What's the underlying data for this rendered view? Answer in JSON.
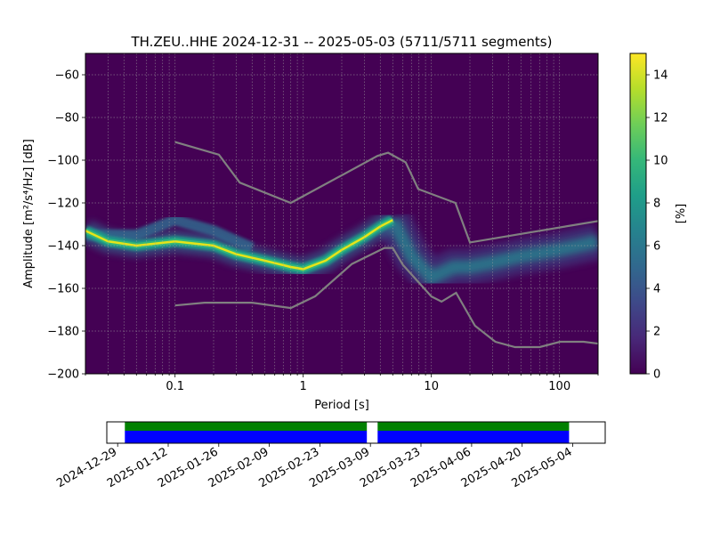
{
  "chart_data": {
    "type": "heatmap",
    "title": "TH.ZEU..HHE   2024-12-31 -- 2025-05-03  (5711/5711 segments)",
    "xlabel": "Period [s]",
    "ylabel": "Amplitude [m²/s⁴/Hz] [dB]",
    "x_scale": "log",
    "xlim": [
      0.02,
      200
    ],
    "ylim": [
      -200,
      -50
    ],
    "x_ticks": [
      {
        "value": 0.1,
        "label": "0.1"
      },
      {
        "value": 1,
        "label": "1"
      },
      {
        "value": 10,
        "label": "10"
      },
      {
        "value": 100,
        "label": "100"
      }
    ],
    "y_ticks": [
      -200,
      -180,
      -160,
      -140,
      -120,
      -100,
      -80,
      -60
    ],
    "grid": true,
    "colorbar": {
      "label": "[%]",
      "range": [
        0,
        15
      ],
      "ticks": [
        0,
        2,
        4,
        6,
        8,
        10,
        12,
        14
      ],
      "colormap": [
        "#440154",
        "#482878",
        "#3e4989",
        "#31688e",
        "#26828e",
        "#1f9e89",
        "#35b779",
        "#6ece58",
        "#b5de2b",
        "#fde725"
      ]
    },
    "mode_curve": {
      "x": [
        0.02,
        0.03,
        0.05,
        0.1,
        0.2,
        0.3,
        0.5,
        0.8,
        1,
        1.5,
        2,
        3,
        4,
        5
      ],
      "y": [
        -133,
        -138,
        -140,
        -138,
        -140,
        -144,
        -147,
        -150,
        -151,
        -147,
        -142,
        -136,
        -131,
        -128
      ]
    },
    "secondary_ridge": {
      "x": [
        0.02,
        0.05,
        0.1,
        0.2,
        0.4
      ],
      "y": [
        -135,
        -135,
        -128,
        -133,
        -141
      ]
    },
    "broad_band": {
      "x": [
        5,
        7,
        10,
        15,
        20,
        30,
        50,
        100,
        200
      ],
      "y": [
        -128,
        -145,
        -155,
        -150,
        -150,
        -148,
        -145,
        -142,
        -138
      ]
    },
    "high_noise_model": {
      "x": [
        0.1,
        0.22,
        0.32,
        0.8,
        3.8,
        4.6,
        6.3,
        7.9,
        15.4,
        20,
        354.8
      ],
      "y": [
        -91.5,
        -97.4,
        -110.5,
        -120,
        -98,
        -96.5,
        -101,
        -113.5,
        -120,
        -138.5,
        -126
      ]
    },
    "low_noise_model": {
      "x": [
        0.1,
        0.17,
        0.4,
        0.8,
        1.24,
        2.4,
        4.3,
        5,
        6,
        10,
        12,
        15.6,
        21.9,
        31.6,
        45,
        70,
        101,
        154,
        328
      ],
      "y": [
        -168,
        -166.7,
        -166.7,
        -169.2,
        -163.7,
        -148.6,
        -141.1,
        -141.1,
        -149,
        -163.8,
        -166.2,
        -162.1,
        -177.5,
        -185,
        -187.5,
        -187.5,
        -185,
        -185,
        -187.5
      ]
    },
    "timeline": {
      "date_ticks": [
        "2024-12-29",
        "2025-01-12",
        "2025-01-26",
        "2025-02-09",
        "2025-02-23",
        "2025-03-09",
        "2025-03-23",
        "2025-04-06",
        "2025-04-20",
        "2025-05-04"
      ],
      "range": [
        "2024-12-26",
        "2025-05-13"
      ],
      "data_segments": [
        [
          "2024-12-31",
          "2025-03-08"
        ],
        [
          "2025-03-11",
          "2025-05-03"
        ]
      ],
      "colors": {
        "data": "#0000ff",
        "used": "#008000"
      }
    }
  }
}
